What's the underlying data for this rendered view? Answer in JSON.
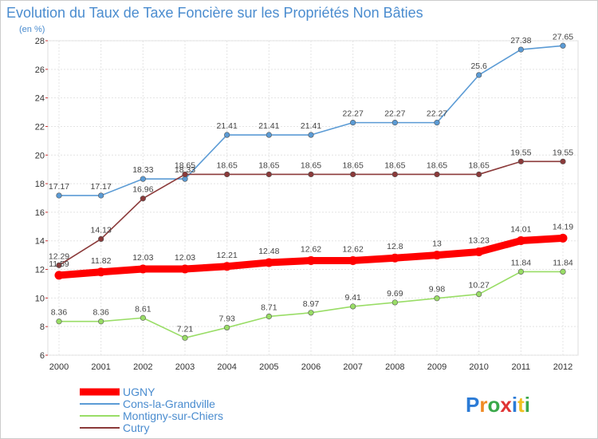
{
  "chart_data": {
    "type": "line",
    "title": "Evolution du Taux de Taxe Foncière sur les Propriétés Non Bâties",
    "subtitle": "(en %)",
    "x": [
      "2000",
      "2001",
      "2002",
      "2003",
      "2004",
      "2005",
      "2006",
      "2007",
      "2008",
      "2009",
      "2010",
      "2011",
      "2012"
    ],
    "ylim": [
      6,
      28
    ],
    "yticks": [
      "6",
      "8",
      "10",
      "12",
      "14",
      "16",
      "18",
      "20",
      "22",
      "24",
      "26",
      "28"
    ],
    "grid": true,
    "legend_position": "bottom-left",
    "series": [
      {
        "name": "UGNY",
        "color": "#ff0000",
        "values": [
          11.59,
          11.82,
          12.03,
          12.03,
          12.21,
          12.48,
          12.62,
          12.62,
          12.8,
          13,
          13.23,
          14.01,
          14.19
        ],
        "labels": [
          "11.59",
          "11.82",
          "12.03",
          "12.03",
          "12.21",
          "12.48",
          "12.62",
          "12.62",
          "12.8",
          "13",
          "13.23",
          "14.01",
          "14.19"
        ]
      },
      {
        "name": "Cons-la-Grandville",
        "color": "#5b9bd5",
        "values": [
          17.17,
          17.17,
          18.33,
          18.33,
          21.41,
          21.41,
          21.41,
          22.27,
          22.27,
          22.27,
          25.6,
          27.38,
          27.65
        ],
        "labels": [
          "17.17",
          "17.17",
          "18.33",
          "18.33",
          "21.41",
          "21.41",
          "21.41",
          "22.27",
          "22.27",
          "22.27",
          "25.6",
          "27.38",
          "27.65"
        ]
      },
      {
        "name": "Montigny-sur-Chiers",
        "color": "#99dd66",
        "values": [
          8.36,
          8.36,
          8.61,
          7.21,
          7.93,
          8.71,
          8.97,
          9.41,
          9.69,
          9.98,
          10.27,
          11.84,
          11.84
        ],
        "labels": [
          "8.36",
          "8.36",
          "8.61",
          "7.21",
          "7.93",
          "8.71",
          "8.97",
          "9.41",
          "9.69",
          "9.98",
          "10.27",
          "11.84",
          "11.84"
        ]
      },
      {
        "name": "Cutry",
        "color": "#8b3a3a",
        "values": [
          12.29,
          14.13,
          16.96,
          18.65,
          18.65,
          18.65,
          18.65,
          18.65,
          18.65,
          18.65,
          18.65,
          19.55,
          19.55
        ],
        "labels": [
          "12.29",
          "14.13",
          "16.96",
          "18.65",
          "18.65",
          "18.65",
          "18.65",
          "18.65",
          "18.65",
          "18.65",
          "18.65",
          "19.55",
          "19.55"
        ]
      }
    ]
  },
  "logo": {
    "text": "Proxiti"
  }
}
